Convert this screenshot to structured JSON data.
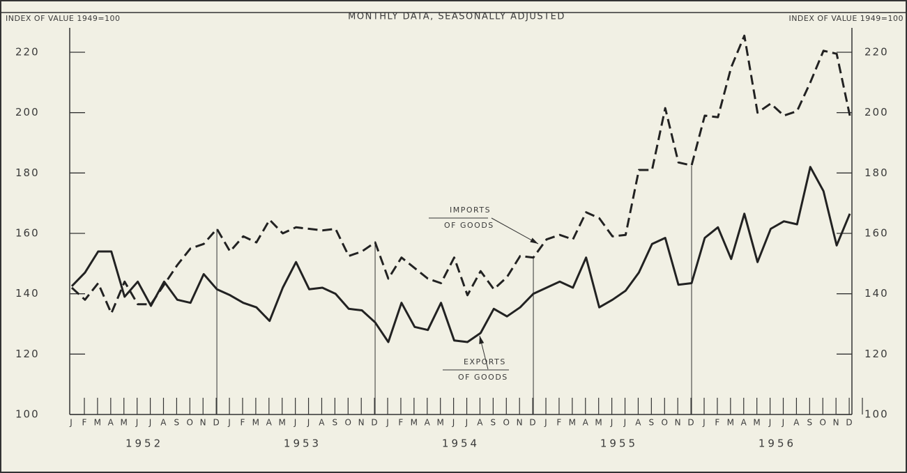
{
  "chart_data": {
    "type": "line",
    "title": "MONTHLY DATA, SEASONALLY ADJUSTED",
    "y_label": "INDEX OF VALUE 1949=100",
    "y2_label": "INDEX OF VALUE 1949=100",
    "categories": [
      "J",
      "F",
      "M",
      "A",
      "M",
      "J",
      "J",
      "A",
      "S",
      "O",
      "N",
      "D",
      "J",
      "F",
      "M",
      "A",
      "M",
      "J",
      "J",
      "A",
      "S",
      "O",
      "N",
      "D",
      "J",
      "F",
      "M",
      "A",
      "M",
      "J",
      "J",
      "A",
      "S",
      "O",
      "N",
      "D",
      "J",
      "F",
      "M",
      "A",
      "M",
      "J",
      "J",
      "A",
      "S",
      "O",
      "N",
      "D",
      "J",
      "F",
      "M",
      "A",
      "M",
      "J",
      "J",
      "A",
      "S",
      "O",
      "N",
      "D"
    ],
    "years": [
      "1952",
      "1953",
      "1954",
      "1955",
      "1956"
    ],
    "series": [
      {
        "name": "IMPORTS OF GOODS",
        "color": "#222222",
        "dashed": true,
        "values": [
          142,
          138,
          143.5,
          133.5,
          144,
          136.5,
          136.5,
          143,
          149.5,
          155,
          156.5,
          161.5,
          154,
          159,
          157,
          164.5,
          160,
          162,
          161.5,
          161,
          161.5,
          152.5,
          154,
          157,
          145,
          152,
          148.5,
          145,
          143.5,
          152,
          139.5,
          147.5,
          141.5,
          145.5,
          152.5,
          152,
          158,
          159.5,
          158,
          167,
          165,
          159,
          159.5,
          181,
          181,
          201.5,
          183.5,
          182.5,
          199,
          198.5,
          215,
          225.5,
          200,
          203,
          199,
          200.5,
          210,
          220.5,
          219.5,
          199
        ]
      },
      {
        "name": "EXPORTS OF GOODS",
        "color": "#222222",
        "dashed": false,
        "values": [
          142.5,
          147,
          154,
          154,
          139,
          144,
          136,
          144,
          138,
          137,
          146.5,
          141.5,
          139.5,
          137,
          135.5,
          131,
          142,
          150.5,
          141.5,
          142,
          140,
          135,
          134.5,
          130.5,
          124,
          137,
          129,
          128,
          137,
          124.5,
          124,
          127,
          135,
          132.5,
          135.5,
          140,
          142,
          144,
          142,
          152,
          135.5,
          138,
          141,
          147,
          156.5,
          158.5,
          143,
          143.5,
          158.5,
          162,
          151.5,
          166.5,
          150.5,
          161.5,
          164,
          163,
          182,
          174,
          156,
          166.5
        ]
      }
    ],
    "annotations": [
      {
        "lines": [
          "IMPORTS",
          "OF GOODS"
        ]
      },
      {
        "lines": [
          "EXPORTS",
          "OF GOODS"
        ]
      }
    ],
    "ylim": [
      100,
      220
    ],
    "yticks": [
      100,
      120,
      140,
      160,
      180,
      200,
      220
    ],
    "y2lim": [
      100,
      220
    ],
    "y2ticks": [
      100,
      120,
      140,
      160,
      180,
      200,
      220
    ]
  }
}
